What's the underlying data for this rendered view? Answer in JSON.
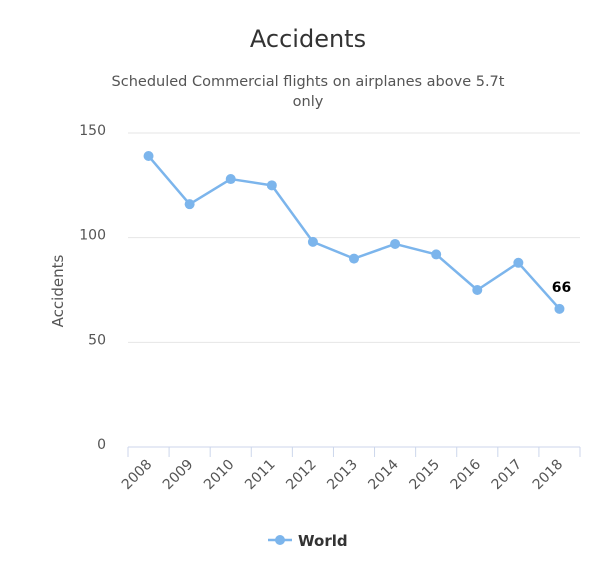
{
  "chart_data": {
    "type": "line",
    "title": "Accidents",
    "subtitle_lines": [
      "Scheduled Commercial flights on airplanes above 5.7t",
      "only"
    ],
    "ylabel": "Accidents",
    "xlabel": "",
    "categories": [
      "2008",
      "2009",
      "2010",
      "2011",
      "2012",
      "2013",
      "2014",
      "2015",
      "2016",
      "2017",
      "2018"
    ],
    "series": [
      {
        "name": "World",
        "values": [
          139,
          116,
          128,
          125,
          98,
          90,
          97,
          92,
          75,
          88,
          66
        ],
        "color": "#7cb5ec"
      }
    ],
    "ylim": [
      0,
      150
    ],
    "yticks": [
      "0",
      "50",
      "100",
      "150"
    ],
    "data_labels": [
      {
        "index": 10,
        "text": "66"
      }
    ],
    "grid": true,
    "legend": "bottom-center"
  }
}
